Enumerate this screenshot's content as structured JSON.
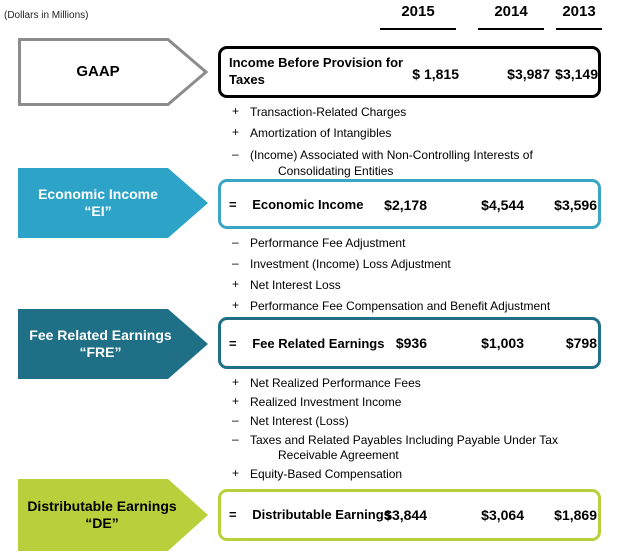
{
  "units_note": "(Dollars in Millions)",
  "years": [
    "2015",
    "2014",
    "2013"
  ],
  "stages": [
    {
      "arrow_label_1": "GAAP",
      "arrow_label_2": "",
      "arrow_color": "#ffffff",
      "arrow_border": "#8c8c8c",
      "arrow_text_color": "#000000",
      "box_border": "#000000",
      "prefix": "",
      "label_1": "Income Before Provision for",
      "label_2": "Taxes",
      "values": [
        "$ 1,815",
        "$3,987",
        "$3,149"
      ]
    },
    {
      "arrow_label_1": "Economic Income",
      "arrow_label_2": "“EI”",
      "arrow_color": "#2ea3c8",
      "arrow_border": "#2ea3c8",
      "arrow_text_color": "#ffffff",
      "box_border": "#3aa6c4",
      "prefix": "=",
      "label_1": "Economic Income",
      "label_2": "",
      "values": [
        "$2,178",
        "$4,544",
        "$3,596"
      ]
    },
    {
      "arrow_label_1": "Fee Related Earnings",
      "arrow_label_2": "“FRE”",
      "arrow_color": "#1f6f86",
      "arrow_border": "#1f6f86",
      "arrow_text_color": "#ffffff",
      "box_border": "#1f6f86",
      "prefix": "=",
      "label_1": "Fee Related Earnings",
      "label_2": "",
      "values": [
        "$936",
        "$1,003",
        "$798"
      ]
    },
    {
      "arrow_label_1": "Distributable Earnings",
      "arrow_label_2": "“DE”",
      "arrow_color": "#b9d03c",
      "arrow_border": "#b9d03c",
      "arrow_text_color": "#000000",
      "box_border": "#b9d03c",
      "prefix": "=",
      "label_1": "Distributable Earnings",
      "label_2": "",
      "values": [
        "$3,844",
        "$3,064",
        "$1,869"
      ]
    }
  ],
  "adjustments": [
    [
      {
        "sign": "+",
        "text": "Transaction-Related Charges"
      },
      {
        "sign": "+",
        "text": "Amortization of Intangibles"
      },
      {
        "sign": "–",
        "text": "(Income) Associated with Non-Controlling Interests of",
        "text_2": "Consolidating Entities"
      }
    ],
    [
      {
        "sign": "–",
        "text": "Performance Fee Adjustment"
      },
      {
        "sign": "–",
        "text": "Investment (Income) Loss Adjustment"
      },
      {
        "sign": "+",
        "text": "Net Interest Loss"
      },
      {
        "sign": "+",
        "text": "Performance Fee Compensation and Benefit Adjustment"
      }
    ],
    [
      {
        "sign": "+",
        "text": "Net Realized Performance Fees"
      },
      {
        "sign": "+",
        "text": "Realized Investment Income"
      },
      {
        "sign": "–",
        "text": "Net Interest (Loss)"
      },
      {
        "sign": "–",
        "text": "Taxes and Related Payables Including Payable Under Tax",
        "text_2": "Receivable Agreement"
      },
      {
        "sign": "+",
        "text": "Equity-Based Compensation"
      }
    ]
  ]
}
